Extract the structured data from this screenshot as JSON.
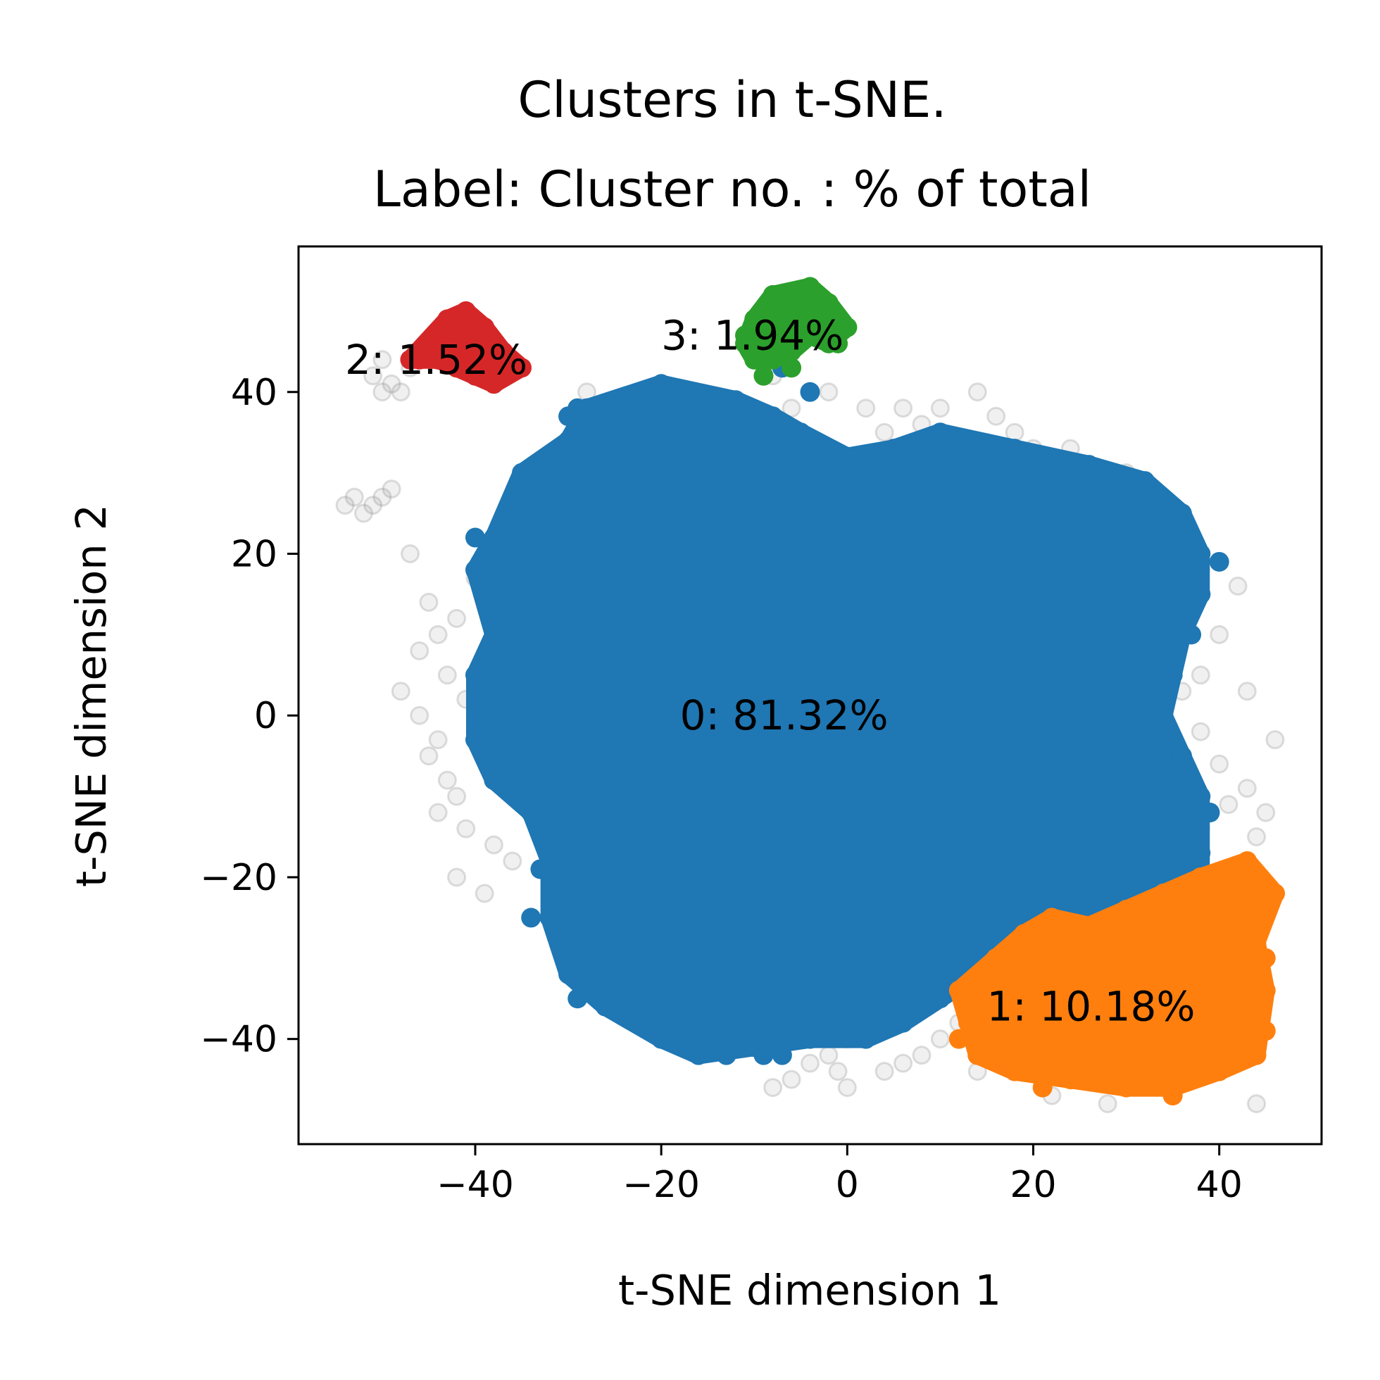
{
  "chart_data": {
    "type": "scatter",
    "title": "Clusters in t-SNE.",
    "subtitle": "Label: Cluster no. : % of total",
    "xlabel": "t-SNE dimension 1",
    "ylabel": "t-SNE dimension 2",
    "xlim": [
      -59,
      51
    ],
    "ylim": [
      -53,
      58
    ],
    "xticks": [
      -40,
      -20,
      0,
      20,
      40
    ],
    "yticks": [
      -40,
      -20,
      0,
      20,
      40
    ],
    "grid": false,
    "legend": "none",
    "noise": {
      "color": "#808080",
      "points": [
        [
          -50,
          44
        ],
        [
          -49,
          41
        ],
        [
          -48,
          40
        ],
        [
          -47,
          43
        ],
        [
          -51,
          42
        ],
        [
          -50,
          40
        ],
        [
          -54,
          26
        ],
        [
          -53,
          27
        ],
        [
          -52,
          25
        ],
        [
          -51,
          26
        ],
        [
          -50,
          27
        ],
        [
          -49,
          28
        ],
        [
          -47,
          20
        ],
        [
          -45,
          14
        ],
        [
          -44,
          10
        ],
        [
          -46,
          8
        ],
        [
          -48,
          3
        ],
        [
          -45,
          -5
        ],
        [
          -44,
          -12
        ],
        [
          -42,
          -10
        ],
        [
          -41,
          -14
        ],
        [
          -38,
          -16
        ],
        [
          -39,
          -22
        ],
        [
          -40,
          17
        ],
        [
          -42,
          12
        ],
        [
          -43,
          5
        ],
        [
          -41,
          2
        ],
        [
          -44,
          -3
        ],
        [
          -38,
          -8
        ],
        [
          -40,
          -2
        ],
        [
          -42,
          -20
        ],
        [
          -36,
          -18
        ],
        [
          -46,
          0
        ],
        [
          -43,
          -8
        ],
        [
          -28,
          40
        ],
        [
          -22,
          40
        ],
        [
          -16,
          38
        ],
        [
          -12,
          34
        ],
        [
          -8,
          42
        ],
        [
          -6,
          38
        ],
        [
          -2,
          40
        ],
        [
          2,
          38
        ],
        [
          4,
          35
        ],
        [
          6,
          38
        ],
        [
          8,
          36
        ],
        [
          10,
          38
        ],
        [
          12,
          34
        ],
        [
          14,
          40
        ],
        [
          16,
          37
        ],
        [
          18,
          35
        ],
        [
          20,
          33
        ],
        [
          24,
          33
        ],
        [
          30,
          30
        ],
        [
          35,
          24
        ],
        [
          38,
          18
        ],
        [
          42,
          16
        ],
        [
          40,
          10
        ],
        [
          38,
          5
        ],
        [
          36,
          3
        ],
        [
          38,
          -2
        ],
        [
          40,
          -6
        ],
        [
          43,
          -9
        ],
        [
          44,
          -15
        ],
        [
          42,
          -20
        ],
        [
          45,
          -12
        ],
        [
          43,
          3
        ],
        [
          46,
          -3
        ],
        [
          41,
          -11
        ],
        [
          36,
          -8
        ],
        [
          38,
          -14
        ],
        [
          2,
          -38
        ],
        [
          0,
          -40
        ],
        [
          -2,
          -42
        ],
        [
          -4,
          -43
        ],
        [
          -6,
          -45
        ],
        [
          4,
          -44
        ],
        [
          -8,
          -46
        ],
        [
          0,
          -46
        ],
        [
          6,
          -43
        ],
        [
          10,
          -40
        ],
        [
          12,
          -38
        ],
        [
          14,
          -44
        ],
        [
          22,
          -47
        ],
        [
          28,
          -48
        ],
        [
          34,
          -46
        ],
        [
          44,
          -48
        ],
        [
          6,
          -34
        ],
        [
          -4,
          -36
        ],
        [
          8,
          -42
        ],
        [
          -1,
          -44
        ]
      ]
    },
    "clusters": [
      {
        "id": 0,
        "label": "0: 81.32%",
        "color": "#1f77b4",
        "label_pos": [
          -18,
          0
        ],
        "hull": [
          [
            -28,
            38
          ],
          [
            -20,
            41
          ],
          [
            -12,
            39
          ],
          [
            -8,
            37
          ],
          [
            -5,
            35
          ],
          [
            0,
            32
          ],
          [
            5,
            33
          ],
          [
            10,
            35
          ],
          [
            18,
            33
          ],
          [
            26,
            31
          ],
          [
            32,
            29
          ],
          [
            36,
            25
          ],
          [
            38,
            20
          ],
          [
            38,
            15
          ],
          [
            36,
            10
          ],
          [
            35,
            5
          ],
          [
            34,
            0
          ],
          [
            36,
            -5
          ],
          [
            38,
            -10
          ],
          [
            38,
            -20
          ],
          [
            34,
            -24
          ],
          [
            28,
            -26
          ],
          [
            22,
            -29
          ],
          [
            18,
            -30
          ],
          [
            14,
            -32
          ],
          [
            10,
            -35
          ],
          [
            6,
            -38
          ],
          [
            2,
            -40
          ],
          [
            -4,
            -40
          ],
          [
            -10,
            -41
          ],
          [
            -16,
            -42
          ],
          [
            -20,
            -40
          ],
          [
            -26,
            -36
          ],
          [
            -30,
            -32
          ],
          [
            -32,
            -25
          ],
          [
            -32,
            -18
          ],
          [
            -34,
            -12
          ],
          [
            -38,
            -8
          ],
          [
            -40,
            -3
          ],
          [
            -40,
            5
          ],
          [
            -38,
            10
          ],
          [
            -40,
            18
          ],
          [
            -38,
            22
          ],
          [
            -35,
            30
          ],
          [
            -30,
            34
          ]
        ],
        "extra": [
          [
            -30,
            37
          ],
          [
            -29,
            38
          ],
          [
            -40,
            22
          ],
          [
            -39,
            19
          ],
          [
            -38,
            9
          ],
          [
            -33,
            -19
          ],
          [
            -34,
            -25
          ],
          [
            -30,
            -31
          ],
          [
            -29,
            -35
          ],
          [
            -13,
            -42
          ],
          [
            -9,
            -42
          ],
          [
            -7,
            -42
          ],
          [
            3,
            -38
          ],
          [
            20,
            29
          ],
          [
            40,
            19
          ],
          [
            38,
            15
          ],
          [
            36,
            12
          ],
          [
            37,
            10
          ],
          [
            34,
            2
          ],
          [
            36,
            -5
          ],
          [
            39,
            -12
          ],
          [
            36,
            -17
          ],
          [
            38,
            -17
          ],
          [
            -7,
            43
          ],
          [
            -4,
            40
          ]
        ]
      },
      {
        "id": 1,
        "label": "1: 10.18%",
        "color": "#ff7f0e",
        "label_pos": [
          15,
          -36
        ],
        "hull": [
          [
            22,
            -25
          ],
          [
            26,
            -26
          ],
          [
            30,
            -24
          ],
          [
            34,
            -22
          ],
          [
            38,
            -20
          ],
          [
            43,
            -18
          ],
          [
            46,
            -22
          ],
          [
            44,
            -28
          ],
          [
            45,
            -34
          ],
          [
            44,
            -42
          ],
          [
            40,
            -44
          ],
          [
            35,
            -46
          ],
          [
            30,
            -46
          ],
          [
            24,
            -45
          ],
          [
            18,
            -44
          ],
          [
            14,
            -42
          ],
          [
            13,
            -38
          ],
          [
            12,
            -34
          ],
          [
            16,
            -30
          ],
          [
            19,
            -27
          ]
        ],
        "extra": [
          [
            16,
            -42
          ],
          [
            12,
            -40
          ],
          [
            21,
            -46
          ],
          [
            35,
            -47
          ],
          [
            43,
            -42
          ],
          [
            45,
            -39
          ],
          [
            45,
            -30
          ],
          [
            46,
            -22
          ],
          [
            44,
            -20
          ],
          [
            39,
            -21
          ],
          [
            36,
            -23
          ],
          [
            18,
            -29
          ]
        ]
      },
      {
        "id": 2,
        "label": "2: 1.52%",
        "color": "#d62728",
        "label_pos": [
          -54,
          44
        ],
        "hull": [
          [
            -43,
            49
          ],
          [
            -41,
            50
          ],
          [
            -39,
            48
          ],
          [
            -37,
            45
          ],
          [
            -35,
            43
          ],
          [
            -38,
            41
          ],
          [
            -40,
            42
          ],
          [
            -42,
            43
          ],
          [
            -44,
            44
          ],
          [
            -47,
            44
          ]
        ],
        "extra": [
          [
            -47,
            44
          ],
          [
            -46,
            44
          ],
          [
            -38,
            42
          ],
          [
            -36,
            43
          ],
          [
            -41,
            49
          ]
        ]
      },
      {
        "id": 3,
        "label": "3: 1.94%",
        "color": "#2ca02c",
        "label_pos": [
          -20,
          47
        ],
        "hull": [
          [
            -8,
            52
          ],
          [
            -4,
            53
          ],
          [
            -2,
            51
          ],
          [
            0,
            48
          ],
          [
            -2,
            46
          ],
          [
            -4,
            47
          ],
          [
            -6,
            45
          ],
          [
            -8,
            44
          ],
          [
            -10,
            44
          ],
          [
            -11,
            46
          ],
          [
            -10,
            49
          ]
        ],
        "extra": [
          [
            -11,
            47
          ],
          [
            -10,
            44
          ],
          [
            -9,
            42
          ],
          [
            -6,
            43
          ],
          [
            -1,
            46
          ],
          [
            0,
            48
          ]
        ]
      }
    ]
  }
}
